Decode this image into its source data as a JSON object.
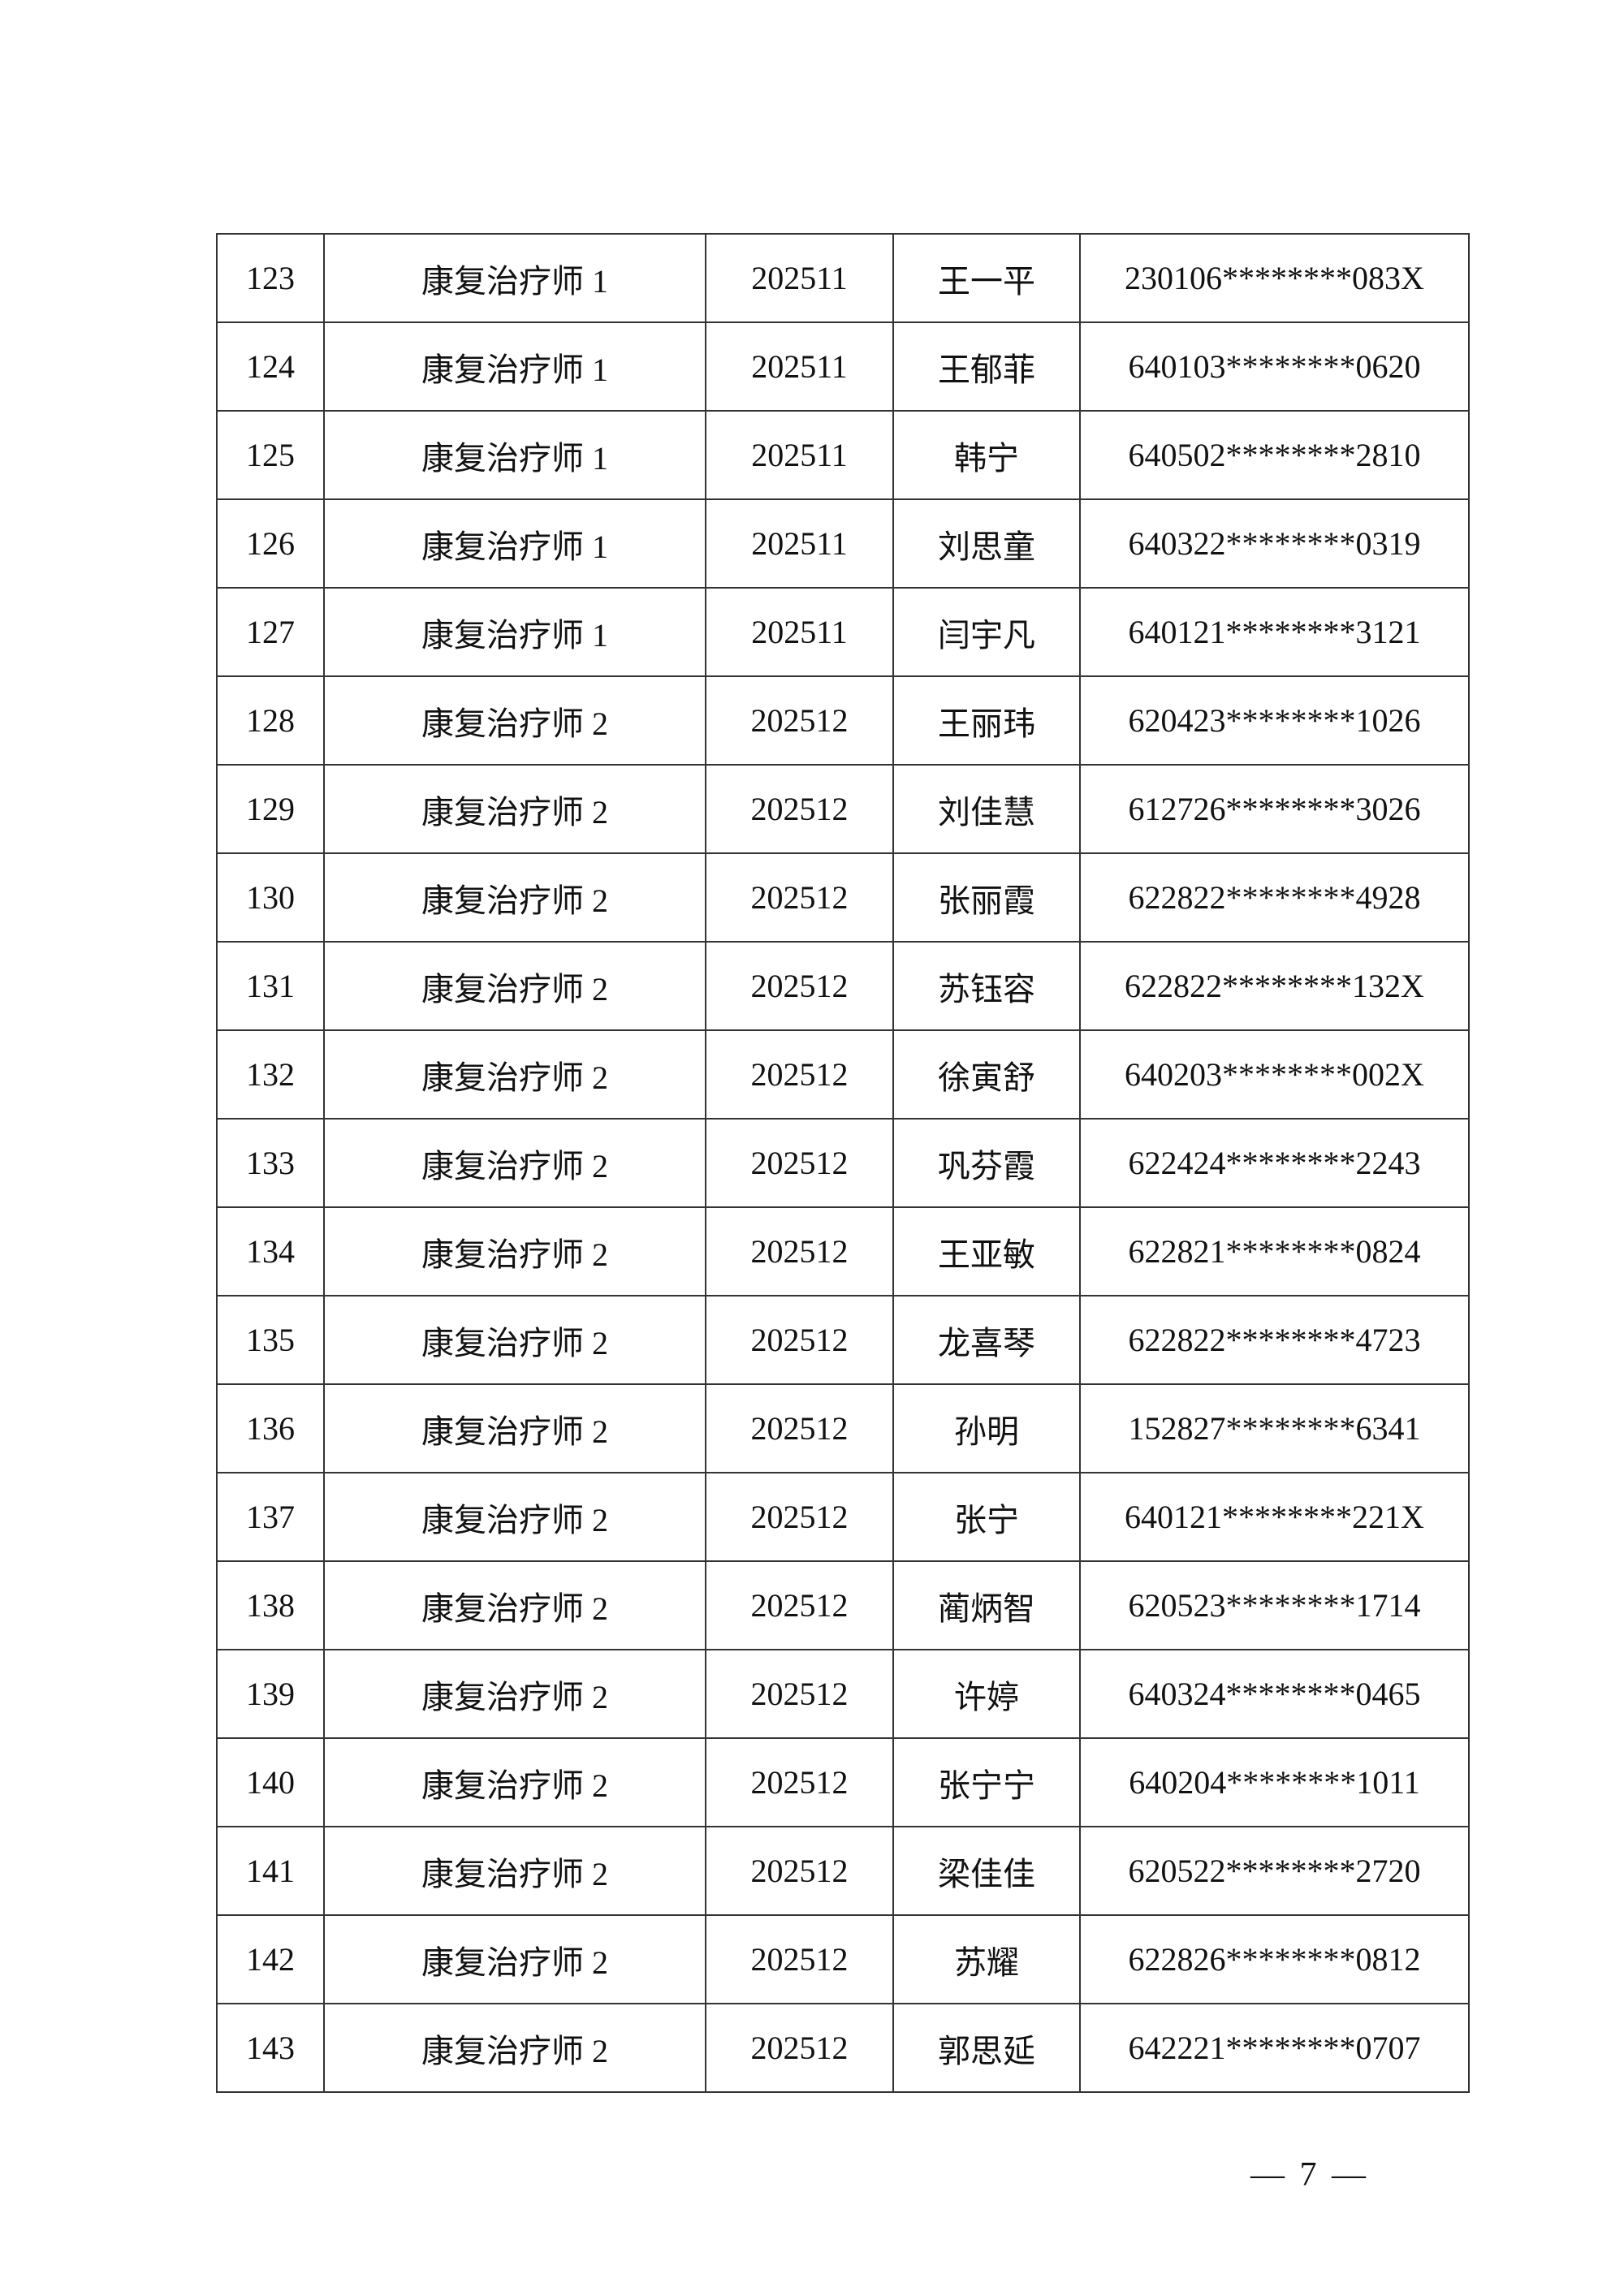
{
  "table": {
    "rows": [
      [
        "123",
        "康复治疗师 1",
        "202511",
        "王一平",
        "230106********083X"
      ],
      [
        "124",
        "康复治疗师 1",
        "202511",
        "王郁菲",
        "640103********0620"
      ],
      [
        "125",
        "康复治疗师 1",
        "202511",
        "韩宁",
        "640502********2810"
      ],
      [
        "126",
        "康复治疗师 1",
        "202511",
        "刘思童",
        "640322********0319"
      ],
      [
        "127",
        "康复治疗师 1",
        "202511",
        "闫宇凡",
        "640121********3121"
      ],
      [
        "128",
        "康复治疗师 2",
        "202512",
        "王丽玮",
        "620423********1026"
      ],
      [
        "129",
        "康复治疗师 2",
        "202512",
        "刘佳慧",
        "612726********3026"
      ],
      [
        "130",
        "康复治疗师 2",
        "202512",
        "张丽霞",
        "622822********4928"
      ],
      [
        "131",
        "康复治疗师 2",
        "202512",
        "苏钰容",
        "622822********132X"
      ],
      [
        "132",
        "康复治疗师 2",
        "202512",
        "徐寅舒",
        "640203********002X"
      ],
      [
        "133",
        "康复治疗师 2",
        "202512",
        "巩芬霞",
        "622424********2243"
      ],
      [
        "134",
        "康复治疗师 2",
        "202512",
        "王亚敏",
        "622821********0824"
      ],
      [
        "135",
        "康复治疗师 2",
        "202512",
        "龙喜琴",
        "622822********4723"
      ],
      [
        "136",
        "康复治疗师 2",
        "202512",
        "孙明",
        "152827********6341"
      ],
      [
        "137",
        "康复治疗师 2",
        "202512",
        "张宁",
        "640121********221X"
      ],
      [
        "138",
        "康复治疗师 2",
        "202512",
        "蔺炳智",
        "620523********1714"
      ],
      [
        "139",
        "康复治疗师 2",
        "202512",
        "许婷",
        "640324********0465"
      ],
      [
        "140",
        "康复治疗师 2",
        "202512",
        "张宁宁",
        "640204********1011"
      ],
      [
        "141",
        "康复治疗师 2",
        "202512",
        "梁佳佳",
        "620522********2720"
      ],
      [
        "142",
        "康复治疗师 2",
        "202512",
        "苏耀",
        "622826********0812"
      ],
      [
        "143",
        "康复治疗师 2",
        "202512",
        "郭思延",
        "642221********0707"
      ]
    ]
  },
  "footer": {
    "page_number": "— 7 —"
  }
}
